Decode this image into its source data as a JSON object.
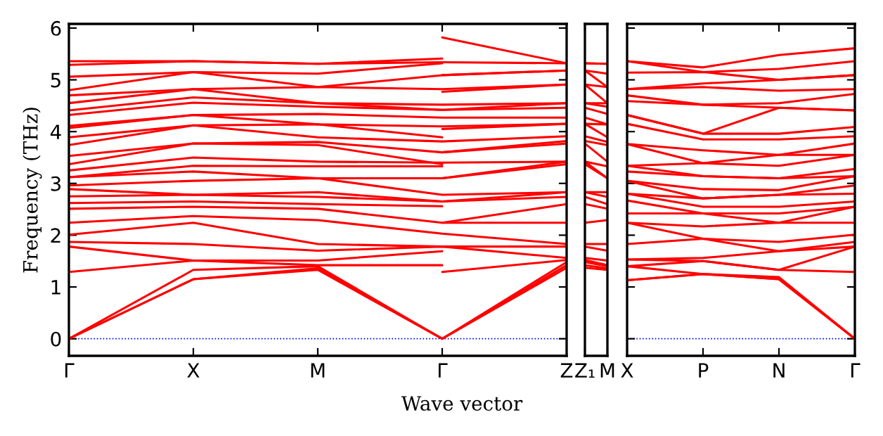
{
  "chart_data": [
    {
      "type": "line",
      "xlabel": "Wave vector",
      "ylabel": "Frequency (THz)",
      "ylim": [
        -0.33,
        6.08
      ],
      "yticks": [
        0,
        1,
        2,
        3,
        4,
        5,
        6
      ],
      "categories": [
        "Γ",
        "X",
        "M",
        "Γ",
        "Z"
      ],
      "ref_lines": [
        {
          "axis": "y",
          "value": 0,
          "color": "#0000ff",
          "line_style": "dotted"
        }
      ],
      "series": [
        {
          "color": "#ff0000",
          "values": [
            0,
            1.15,
            1.33,
            0,
            1.37
          ]
        },
        {
          "color": "#ff0000",
          "values": [
            0,
            1.15,
            1.36,
            0,
            1.42
          ]
        },
        {
          "color": "#ff0000",
          "values": [
            0,
            1.33,
            1.4,
            0,
            1.48
          ]
        },
        {
          "color": "#ff0000",
          "values": [
            1.87,
            1.83,
            1.7,
            1.78,
            1.56
          ]
        },
        {
          "color": "#ff0000",
          "values": [
            2.01,
            2.24,
            1.83,
            1.78,
            1.78
          ]
        },
        {
          "color": "#ff0000",
          "values": [
            2.24,
            2.37,
            2.29,
            2.03,
            1.83
          ]
        },
        {
          "color": "#ff0000",
          "values": [
            2.51,
            2.55,
            2.51,
            2.24,
            2.24
          ]
        },
        {
          "color": "#ff0000",
          "values": [
            2.75,
            2.78,
            2.74,
            2.65,
            2.74
          ]
        },
        {
          "color": "#ff0000",
          "values": [
            2.89,
            2.78,
            2.83,
            2.65,
            2.83
          ]
        },
        {
          "color": "#ff0000",
          "values": [
            2.96,
            3.05,
            3.1,
            2.78,
            2.83
          ]
        },
        {
          "color": "#ff0000",
          "values": [
            3.12,
            3.23,
            3.1,
            3.1,
            3.37
          ]
        },
        {
          "color": "#ff0000",
          "values": [
            3.25,
            3.5,
            3.42,
            3.4,
            3.42
          ]
        },
        {
          "color": "#ff0000",
          "values": [
            3.53,
            3.77,
            3.8,
            3.6,
            3.77
          ]
        },
        {
          "color": "#ff0000",
          "values": [
            3.74,
            4.12,
            3.89,
            3.81,
            3.91
          ]
        },
        {
          "color": "#ff0000",
          "values": [
            4.07,
            4.32,
            4.14,
            4.1,
            4.15
          ]
        },
        {
          "color": "#ff0000",
          "values": [
            4.11,
            4.32,
            4.34,
            4.27,
            4.27
          ]
        },
        {
          "color": "#ff0000",
          "values": [
            4.32,
            4.56,
            4.48,
            4.42,
            4.46
          ]
        },
        {
          "color": "#ff0000",
          "values": [
            4.41,
            4.66,
            4.55,
            4.42,
            4.55
          ]
        },
        {
          "color": "#ff0000",
          "values": [
            4.55,
            4.82,
            4.55,
            4.52,
            4.55
          ]
        },
        {
          "color": "#ff0000",
          "values": [
            4.7,
            4.82,
            4.86,
            4.82,
            4.91
          ]
        },
        {
          "color": "#ff0000",
          "values": [
            4.8,
            5.15,
            4.86,
            5.09,
            5.18
          ]
        },
        {
          "color": "#ff0000",
          "values": [
            5.29,
            5.36,
            5.31,
            5.34,
            5.32
          ]
        },
        {
          "color": "#ff0000",
          "values": [
            1.29,
            1.51,
            1.42,
            1.42,
            null
          ]
        },
        {
          "color": "#ff0000",
          "values": [
            1.78,
            1.51,
            1.51,
            1.69,
            null
          ]
        },
        {
          "color": "#ff0000",
          "values": [
            2.62,
            2.65,
            2.6,
            2.56,
            null
          ]
        },
        {
          "color": "#ff0000",
          "values": [
            3.12,
            3.34,
            3.33,
            3.33,
            null
          ]
        },
        {
          "color": "#ff0000",
          "values": [
            3.37,
            3.77,
            3.74,
            3.37,
            null
          ]
        },
        {
          "color": "#ff0000",
          "values": [
            3.89,
            4.12,
            4.14,
            3.89,
            null
          ]
        },
        {
          "color": "#ff0000",
          "values": [
            5.06,
            5.15,
            5.12,
            5.32,
            null
          ]
        },
        {
          "color": "#ff0000",
          "values": [
            5.36,
            5.36,
            5.31,
            5.41,
            null
          ]
        },
        {
          "color": "#ff0000",
          "values": [
            null,
            null,
            null,
            1.29,
            1.52
          ]
        },
        {
          "color": "#ff0000",
          "values": [
            null,
            null,
            null,
            2.24,
            2.6
          ]
        },
        {
          "color": "#ff0000",
          "values": [
            null,
            null,
            null,
            3.1,
            3.42
          ]
        },
        {
          "color": "#ff0000",
          "values": [
            null,
            null,
            null,
            3.6,
            3.82
          ]
        },
        {
          "color": "#ff0000",
          "values": [
            null,
            null,
            null,
            4.05,
            4.15
          ]
        },
        {
          "color": "#ff0000",
          "values": [
            null,
            null,
            null,
            4.77,
            4.91
          ]
        },
        {
          "color": "#ff0000",
          "values": [
            null,
            null,
            null,
            5.09,
            5.18
          ]
        },
        {
          "color": "#ff0000",
          "values": [
            null,
            null,
            null,
            5.82,
            5.32
          ]
        }
      ]
    },
    {
      "type": "line",
      "tick_labels": "x",
      "ylim": [
        -0.33,
        6.08
      ],
      "categories": [
        "Z₁",
        "M"
      ],
      "series": [
        {
          "color": "#ff0000",
          "values": [
            1.37,
            1.33
          ]
        },
        {
          "color": "#ff0000",
          "values": [
            1.42,
            1.36
          ]
        },
        {
          "color": "#ff0000",
          "values": [
            1.48,
            1.4
          ]
        },
        {
          "color": "#ff0000",
          "values": [
            1.52,
            1.42
          ]
        },
        {
          "color": "#ff0000",
          "values": [
            1.56,
            1.51
          ]
        },
        {
          "color": "#ff0000",
          "values": [
            1.78,
            1.7
          ]
        },
        {
          "color": "#ff0000",
          "values": [
            1.83,
            1.83
          ]
        },
        {
          "color": "#ff0000",
          "values": [
            2.24,
            2.29
          ]
        },
        {
          "color": "#ff0000",
          "values": [
            2.6,
            2.51
          ]
        },
        {
          "color": "#ff0000",
          "values": [
            2.74,
            2.6
          ]
        },
        {
          "color": "#ff0000",
          "values": [
            2.83,
            2.74
          ]
        },
        {
          "color": "#ff0000",
          "values": [
            2.83,
            2.83
          ]
        },
        {
          "color": "#ff0000",
          "values": [
            3.37,
            3.1
          ]
        },
        {
          "color": "#ff0000",
          "values": [
            3.42,
            3.1
          ]
        },
        {
          "color": "#ff0000",
          "values": [
            3.42,
            3.33
          ]
        },
        {
          "color": "#ff0000",
          "values": [
            3.77,
            3.42
          ]
        },
        {
          "color": "#ff0000",
          "values": [
            3.82,
            3.74
          ]
        },
        {
          "color": "#ff0000",
          "values": [
            3.91,
            3.8
          ]
        },
        {
          "color": "#ff0000",
          "values": [
            4.15,
            3.89
          ]
        },
        {
          "color": "#ff0000",
          "values": [
            4.15,
            4.14
          ]
        },
        {
          "color": "#ff0000",
          "values": [
            4.27,
            4.14
          ]
        },
        {
          "color": "#ff0000",
          "values": [
            4.46,
            4.34
          ]
        },
        {
          "color": "#ff0000",
          "values": [
            4.55,
            4.48
          ]
        },
        {
          "color": "#ff0000",
          "values": [
            4.55,
            4.55
          ]
        },
        {
          "color": "#ff0000",
          "values": [
            4.91,
            4.55
          ]
        },
        {
          "color": "#ff0000",
          "values": [
            4.91,
            4.86
          ]
        },
        {
          "color": "#ff0000",
          "values": [
            5.18,
            4.86
          ]
        },
        {
          "color": "#ff0000",
          "values": [
            5.18,
            5.12
          ]
        },
        {
          "color": "#ff0000",
          "values": [
            5.32,
            5.31
          ]
        },
        {
          "color": "#ff0000",
          "values": [
            5.32,
            5.31
          ]
        }
      ]
    },
    {
      "type": "line",
      "tick_labels": "x",
      "ylim": [
        -0.33,
        6.08
      ],
      "yticks": [
        0,
        1,
        2,
        3,
        4,
        5,
        6
      ],
      "categories": [
        "X",
        "P",
        "N",
        "Γ"
      ],
      "ref_lines": [
        {
          "axis": "y",
          "value": 0,
          "color": "#0000ff",
          "line_style": "dotted"
        }
      ],
      "series": [
        {
          "color": "#ff0000",
          "values": [
            1.13,
            1.25,
            1.15,
            0
          ]
        },
        {
          "color": "#ff0000",
          "values": [
            1.13,
            1.25,
            1.15,
            0
          ]
        },
        {
          "color": "#ff0000",
          "values": [
            1.4,
            1.25,
            1.19,
            0
          ]
        },
        {
          "color": "#ff0000",
          "values": [
            1.4,
            1.5,
            1.33,
            1.29
          ]
        },
        {
          "color": "#ff0000",
          "values": [
            1.53,
            1.5,
            1.33,
            1.78
          ]
        },
        {
          "color": "#ff0000",
          "values": [
            1.53,
            1.56,
            1.69,
            1.78
          ]
        },
        {
          "color": "#ff0000",
          "values": [
            1.83,
            1.93,
            1.69,
            1.87
          ]
        },
        {
          "color": "#ff0000",
          "values": [
            2.24,
            1.93,
            1.87,
            2.01
          ]
        },
        {
          "color": "#ff0000",
          "values": [
            2.24,
            2.17,
            2.24,
            2.24
          ]
        },
        {
          "color": "#ff0000",
          "values": [
            2.42,
            2.42,
            2.24,
            2.55
          ]
        },
        {
          "color": "#ff0000",
          "values": [
            2.67,
            2.42,
            2.42,
            2.55
          ]
        },
        {
          "color": "#ff0000",
          "values": [
            2.8,
            2.55,
            2.55,
            2.65
          ]
        },
        {
          "color": "#ff0000",
          "values": [
            2.8,
            2.71,
            2.78,
            2.8
          ]
        },
        {
          "color": "#ff0000",
          "values": [
            3.05,
            2.71,
            2.78,
            2.96
          ]
        },
        {
          "color": "#ff0000",
          "values": [
            3.05,
            2.89,
            2.87,
            3.14
          ]
        },
        {
          "color": "#ff0000",
          "values": [
            3.23,
            3.14,
            3.1,
            3.14
          ]
        },
        {
          "color": "#ff0000",
          "values": [
            3.34,
            3.14,
            3.1,
            3.28
          ]
        },
        {
          "color": "#ff0000",
          "values": [
            3.34,
            3.39,
            3.34,
            3.55
          ]
        },
        {
          "color": "#ff0000",
          "values": [
            3.76,
            3.39,
            3.55,
            3.55
          ]
        },
        {
          "color": "#ff0000",
          "values": [
            3.76,
            3.64,
            3.55,
            3.77
          ]
        },
        {
          "color": "#ff0000",
          "values": [
            4.15,
            3.85,
            3.85,
            3.91
          ]
        },
        {
          "color": "#ff0000",
          "values": [
            4.32,
            3.96,
            3.96,
            4.09
          ]
        },
        {
          "color": "#ff0000",
          "values": [
            4.32,
            3.96,
            4.46,
            4.41
          ]
        },
        {
          "color": "#ff0000",
          "values": [
            4.59,
            4.52,
            4.46,
            4.41
          ]
        },
        {
          "color": "#ff0000",
          "values": [
            4.7,
            4.52,
            4.55,
            4.73
          ]
        },
        {
          "color": "#ff0000",
          "values": [
            4.82,
            4.86,
            4.79,
            4.82
          ]
        },
        {
          "color": "#ff0000",
          "values": [
            4.82,
            4.93,
            5.0,
            5.09
          ]
        },
        {
          "color": "#ff0000",
          "values": [
            5.14,
            5.15,
            5.0,
            5.09
          ]
        },
        {
          "color": "#ff0000",
          "values": [
            5.36,
            5.15,
            5.21,
            5.36
          ]
        },
        {
          "color": "#ff0000",
          "values": [
            5.36,
            5.24,
            5.48,
            5.61
          ]
        }
      ]
    }
  ]
}
